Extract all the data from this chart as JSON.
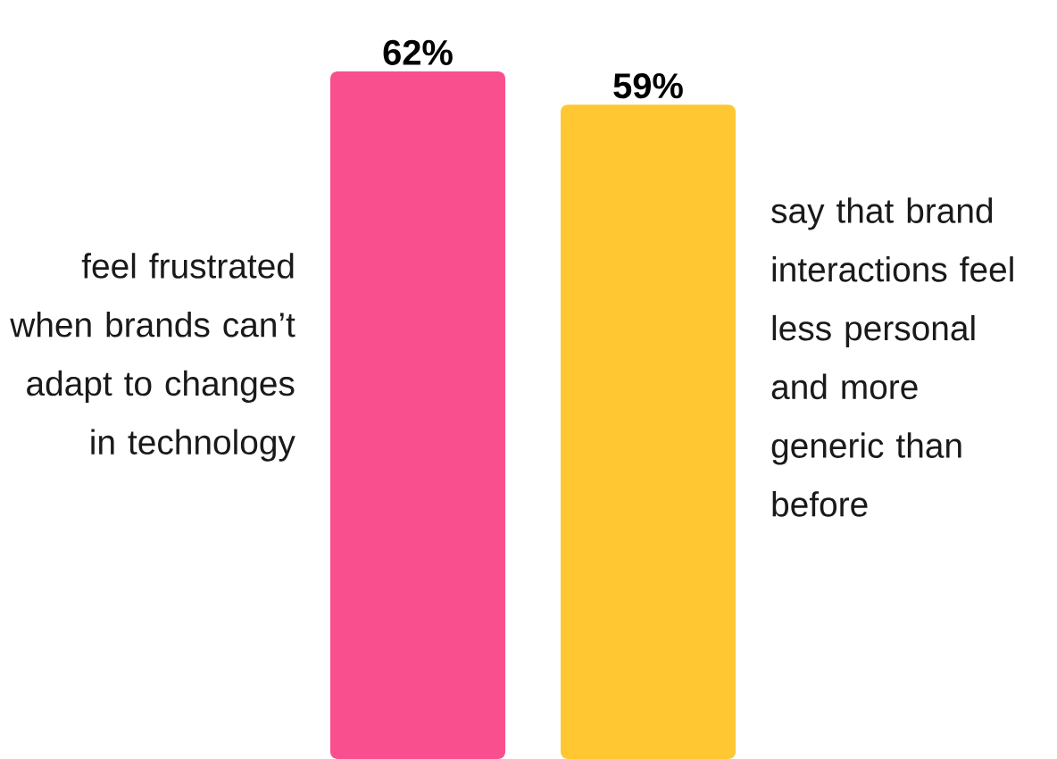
{
  "chart_data": {
    "type": "bar",
    "categories": [
      "feel frustrated when brands can’t adapt to changes in technology",
      "say that brand interactions feel less personal and more generic than before"
    ],
    "values": [
      62,
      59
    ],
    "value_labels": [
      "62%",
      "59%"
    ],
    "colors": [
      "#f94f8f",
      "#ffc833"
    ]
  }
}
